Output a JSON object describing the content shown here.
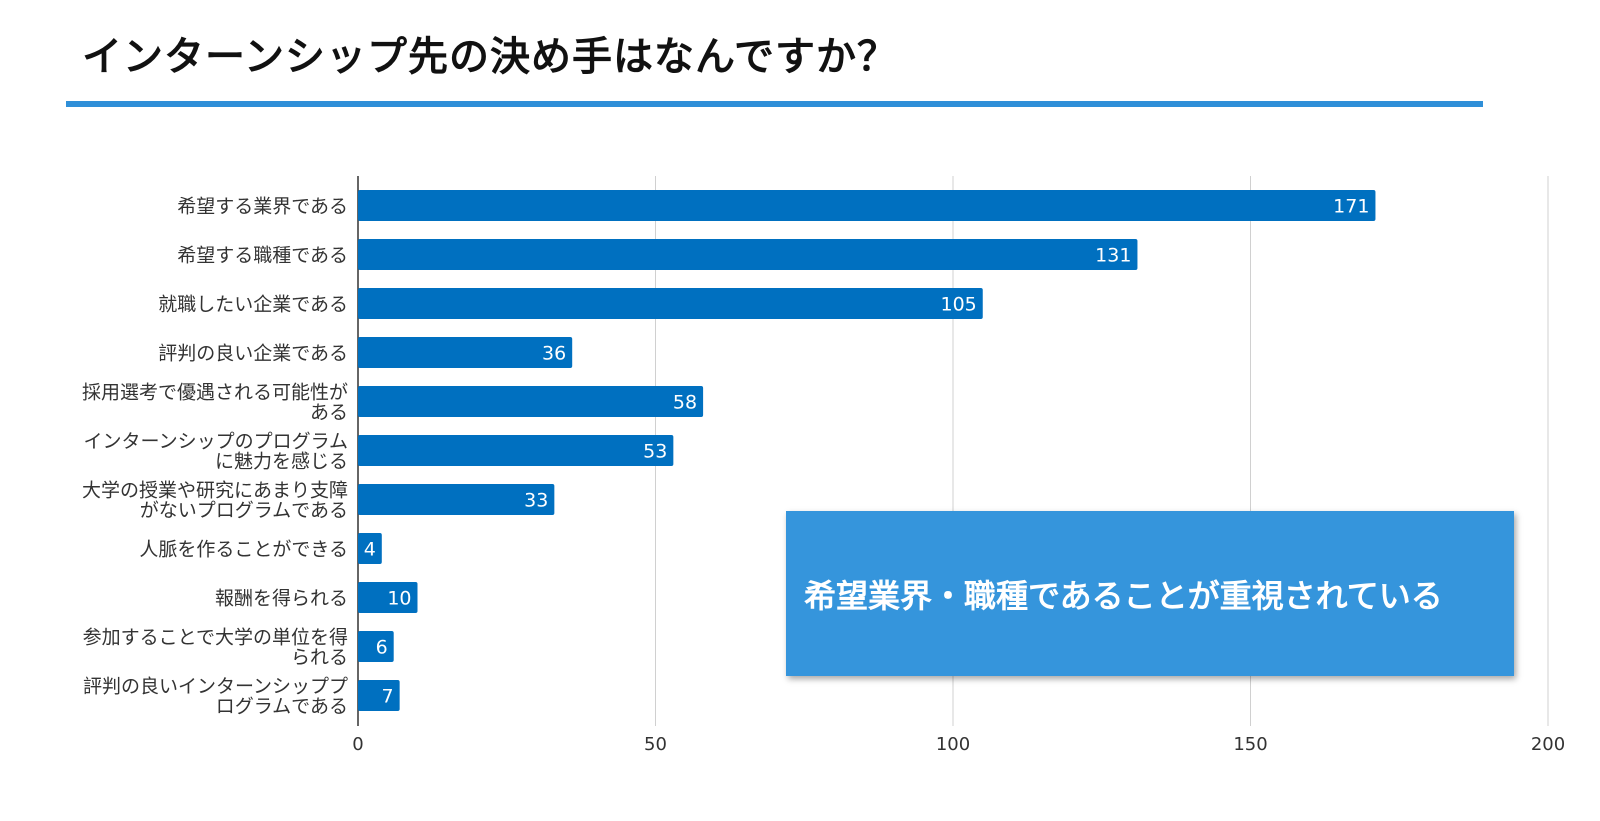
{
  "title": "インターンシップ先の決め手はなんですか？",
  "colors": {
    "bar": "#0070c0",
    "rule": "#2f8fd8",
    "callout_bg": "#3595dc",
    "grid": "#d0d0d0",
    "axis": "#333333",
    "label": "#333333",
    "value_label": "#ffffff"
  },
  "callout": {
    "text": "希望業界・職種であることが重視されている"
  },
  "chart_data": {
    "type": "bar",
    "orientation": "horizontal",
    "categories": [
      [
        "希望する業界である"
      ],
      [
        "希望する職種である"
      ],
      [
        "就職したい企業である"
      ],
      [
        "評判の良い企業である"
      ],
      [
        "採用選考で優遇される可能性が",
        "ある"
      ],
      [
        "インターンシップのプログラム",
        "に魅力を感じる"
      ],
      [
        "大学の授業や研究にあまり支障",
        "がないプログラムである"
      ],
      [
        "人脈を作ることができる"
      ],
      [
        "報酬を得られる"
      ],
      [
        "参加することで大学の単位を得",
        "られる"
      ],
      [
        "評判の良いインターンシッププ",
        "ログラムである"
      ]
    ],
    "values": [
      171,
      131,
      105,
      36,
      58,
      53,
      33,
      4,
      10,
      6,
      7
    ],
    "xlim": [
      0,
      200
    ],
    "xticks": [
      0,
      50,
      100,
      150,
      200
    ],
    "grid": "vertical",
    "legend": "none",
    "data_labels": true
  }
}
